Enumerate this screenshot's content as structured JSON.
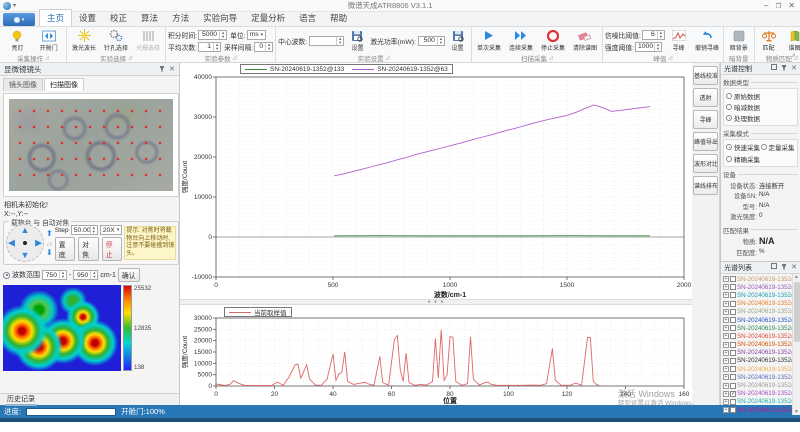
{
  "window": {
    "title": "微谱天成ATR8806 V3.1.1",
    "min": "–",
    "restore": "❐",
    "close": "✕"
  },
  "menu": {
    "tabs": [
      "主页",
      "设置",
      "校正",
      "算法",
      "方法",
      "实验向导",
      "定量分析",
      "语言",
      "帮助"
    ],
    "selected": 0
  },
  "ribbon": {
    "collapse_icon": "˄",
    "groups": {
      "g1": {
        "name": "采集操作",
        "btn1": "亮灯",
        "btn2": "开舱门"
      },
      "g2": {
        "name": "实验选择",
        "btn1": "激光波长",
        "btn2": "针孔选择",
        "btn3": "光栅选择"
      },
      "g3": {
        "name": "实验参数",
        "f1_label": "积分时间:",
        "f1_value": "5000",
        "f2_label": "单位:",
        "f2_value": "ms",
        "f3_label": "平均次数:",
        "f3_value": "1",
        "f4_label": "采样间隔:",
        "f4_value": "0"
      },
      "g4": {
        "name": "实验设置",
        "f1_label": "中心波数:",
        "f1_value": "",
        "set1": "设置",
        "f2_label": "激光功率(mW):",
        "f2_value": "500",
        "set2": "设置"
      },
      "g5": {
        "name": "扫描采集",
        "btn1": "单次采集",
        "btn2": "连续采集",
        "btn3": "停止采集",
        "btn4": "清除谱图"
      },
      "g6": {
        "name": "峰值",
        "f1_label": "信噪比阈值:",
        "f1_value": "6",
        "f2_label": "强度阈值:",
        "f2_value": "1000",
        "btn1": "寻峰",
        "btn2": "撤销寻峰"
      },
      "g7": {
        "name": "暗背景",
        "btn1": "暗背景"
      },
      "g8": {
        "name": "物质匹配",
        "btn1": "匹配",
        "btn2": "谱图"
      }
    }
  },
  "left_panel": {
    "title": "显微镜镜头",
    "tabs": [
      "镜头图像",
      "扫描图像"
    ],
    "selected_tab": 1,
    "camera_note": "相机未初始化!",
    "coords": "X:--,Y:--",
    "stage": {
      "title": "载物台 与 自动对焦",
      "step_label": "Step",
      "step_value": "50.00",
      "zoom_value": "20X",
      "btn_bottom": "置底",
      "btn_focus": "对焦",
      "btn_stop": "停止",
      "hint": "提示: 对焦时将载物台向上移动时, 注意不要碰撞到镜头。"
    },
    "range": {
      "label": "波数范围",
      "from": "750",
      "to": "950",
      "dash": "-",
      "unit": "cm-1",
      "confirm": "确认"
    },
    "colorbar": {
      "max": "25532",
      "mid": "12835",
      "min": "138"
    },
    "history": "历史记录"
  },
  "side_buttons": [
    "基线校准",
    "透射",
    "寻峰",
    "峰值导出",
    "波形对比",
    "谱线排布"
  ],
  "spectrum_control": {
    "title": "光谱控制",
    "data_type": {
      "title": "数据类型",
      "opt1": "原始数据",
      "opt2": "暗减数据",
      "opt3": "处理数据",
      "selected": 2
    },
    "acq_mode": {
      "title": "采集模式",
      "opt1": "快速采集",
      "opt2": "定量采集",
      "opt3": "精确采集",
      "selected": 0
    },
    "device": {
      "title": "设备",
      "r1k": "设备状态:",
      "r1v": "连接断开",
      "r2k": "设备SN:",
      "r2v": "N/A",
      "r3k": "型号:",
      "r3v": "N/A",
      "r4k": "激光强度:",
      "r4v": "0"
    },
    "match": {
      "title": "匹配结果",
      "r1k": "物质:",
      "r1v": "N/A",
      "r2k": "匹配度:",
      "r2v": "%"
    }
  },
  "spectrum_list": {
    "title": "光谱列表",
    "items": [
      {
        "label": "SN-20240619-1352@49",
        "color": "#c89a6a",
        "checked": false
      },
      {
        "label": "SN-20240619-1352@50",
        "color": "#9b59b6",
        "checked": false
      },
      {
        "label": "SN-20240619-1352@51",
        "color": "#17a2b8",
        "checked": false
      },
      {
        "label": "SN-20240619-1352@52",
        "color": "#e67e22",
        "checked": false
      },
      {
        "label": "SN-20240619-1352@53",
        "color": "#9aa87e",
        "checked": false
      },
      {
        "label": "SN-20240619-1352@54",
        "color": "#2255cc",
        "checked": false
      },
      {
        "label": "SN-20240619-1352@55",
        "color": "#2e8b57",
        "checked": false
      },
      {
        "label": "SN-20240619-1352@56",
        "color": "#e74c3c",
        "checked": false
      },
      {
        "label": "SN-20240619-1352@57",
        "color": "#d35400",
        "checked": false
      },
      {
        "label": "SN-20240619-1352@58",
        "color": "#8e44ad",
        "checked": false
      },
      {
        "label": "SN-20240619-1352@59",
        "color": "#333333",
        "checked": false
      },
      {
        "label": "SN-20240619-1352@60",
        "color": "#f0ad4e",
        "checked": false
      },
      {
        "label": "SN-20240619-1352@61",
        "color": "#5b6abf",
        "checked": false
      },
      {
        "label": "SN-20240619-1352@62",
        "color": "#999999",
        "checked": false
      },
      {
        "label": "SN-20240619-1352@63",
        "color": "#a050c8",
        "checked": true
      },
      {
        "label": "SN-20240619-1352@64",
        "color": "#20b2aa",
        "checked": false
      },
      {
        "label": "SN-20240619-1352@65",
        "color": "#c71585",
        "checked": false
      }
    ]
  },
  "status_bar": {
    "progress_label": "进度:",
    "door_status": "开舱门:100%"
  },
  "watermark": {
    "line1": "激活 Windows",
    "line2": "转到设置以激活 Windows。"
  },
  "chart_data": [
    {
      "type": "line",
      "xlabel": "波数/cm-1",
      "ylabel": "强度/Count",
      "xlim": [
        0,
        2000
      ],
      "ylim": [
        -10000,
        40000
      ],
      "xticks": [
        0,
        500,
        1000,
        1500,
        2000
      ],
      "yticks": [
        -10000,
        0,
        10000,
        20000,
        30000,
        40000
      ],
      "xgrid": 100,
      "ygrid": 2000,
      "legend_pos": "top-center",
      "series": [
        {
          "name": "SN-20240619-1352@133",
          "color": "#3c8a3c",
          "points": [
            [
              505,
              300
            ],
            [
              700,
              320
            ],
            [
              900,
              290
            ],
            [
              1100,
              310
            ],
            [
              1300,
              300
            ],
            [
              1500,
              320
            ],
            [
              1700,
              300
            ],
            [
              1855,
              310
            ]
          ]
        },
        {
          "name": "SN-20240619-1352@63",
          "color": "#b05fd0",
          "points": [
            [
              505,
              15300
            ],
            [
              540,
              15700
            ],
            [
              580,
              16300
            ],
            [
              620,
              16900
            ],
            [
              660,
              17500
            ],
            [
              700,
              18100
            ],
            [
              740,
              18700
            ],
            [
              780,
              19400
            ],
            [
              820,
              20000
            ],
            [
              860,
              20700
            ],
            [
              900,
              21300
            ],
            [
              940,
              21900
            ],
            [
              980,
              22500
            ],
            [
              1020,
              23100
            ],
            [
              1060,
              23700
            ],
            [
              1100,
              24400
            ],
            [
              1140,
              25000
            ],
            [
              1180,
              25600
            ],
            [
              1220,
              26300
            ],
            [
              1260,
              26900
            ],
            [
              1300,
              27500
            ],
            [
              1340,
              28200
            ],
            [
              1380,
              28800
            ],
            [
              1420,
              29400
            ],
            [
              1460,
              29900
            ],
            [
              1500,
              30400
            ],
            [
              1540,
              31200
            ],
            [
              1580,
              32200
            ],
            [
              1615,
              33000
            ],
            [
              1650,
              32400
            ],
            [
              1690,
              31400
            ],
            [
              1720,
              31600
            ],
            [
              1760,
              31900
            ],
            [
              1800,
              32200
            ],
            [
              1855,
              32600
            ]
          ]
        }
      ]
    },
    {
      "type": "line",
      "xlabel": "位置",
      "ylabel": "强度/Count",
      "xlim": [
        0,
        160
      ],
      "ylim": [
        0,
        30000
      ],
      "xticks": [
        0,
        20,
        40,
        60,
        80,
        100,
        120,
        140,
        160
      ],
      "yticks": [
        0,
        5000,
        10000,
        15000,
        20000,
        25000,
        30000
      ],
      "xgrid": 5,
      "ygrid": 5000,
      "legend_pos": "top-left",
      "series": [
        {
          "name": "当前取样值",
          "color": "#e06666",
          "points": [
            [
              0,
              900
            ],
            [
              3,
              200
            ],
            [
              5,
              900
            ],
            [
              6,
              2400
            ],
            [
              8,
              1000
            ],
            [
              10,
              200
            ],
            [
              13,
              200
            ],
            [
              16,
              250
            ],
            [
              19,
              250
            ],
            [
              21,
              1700
            ],
            [
              23,
              300
            ],
            [
              25,
              4000
            ],
            [
              27,
              9300
            ],
            [
              28,
              9600
            ],
            [
              29,
              3500
            ],
            [
              31,
              9400
            ],
            [
              32,
              3000
            ],
            [
              34,
              400
            ],
            [
              36,
              300
            ],
            [
              38,
              3000
            ],
            [
              40,
              14200
            ],
            [
              41,
              2500
            ],
            [
              42,
              5300
            ],
            [
              43,
              6000
            ],
            [
              44,
              15000
            ],
            [
              45,
              2000
            ],
            [
              47,
              700
            ],
            [
              49,
              1200
            ],
            [
              51,
              1600
            ],
            [
              52,
              900
            ],
            [
              54,
              300
            ],
            [
              56,
              13000
            ],
            [
              57,
              1500
            ],
            [
              59,
              300
            ],
            [
              61,
              20500
            ],
            [
              62,
              22300
            ],
            [
              63,
              7000
            ],
            [
              64,
              2000
            ],
            [
              65,
              14500
            ],
            [
              66,
              1500
            ],
            [
              68,
              300
            ],
            [
              70,
              700
            ],
            [
              72,
              400
            ],
            [
              74,
              2000
            ],
            [
              75,
              21000
            ],
            [
              76,
              3500
            ],
            [
              77,
              24800
            ],
            [
              78,
              2500
            ],
            [
              79,
              5000
            ],
            [
              80,
              21800
            ],
            [
              81,
              21500
            ],
            [
              82,
              2000
            ],
            [
              84,
              300
            ],
            [
              86,
              1000
            ],
            [
              87,
              21700
            ],
            [
              88,
              3000
            ],
            [
              90,
              400
            ],
            [
              92,
              1500
            ],
            [
              93,
              1700
            ],
            [
              94,
              800
            ],
            [
              96,
              300
            ],
            [
              99,
              300
            ],
            [
              102,
              300
            ],
            [
              105,
              300
            ],
            [
              108,
              400
            ],
            [
              111,
              300
            ],
            [
              113,
              1000
            ],
            [
              115,
              16500
            ],
            [
              116,
              2500
            ],
            [
              118,
              300
            ],
            [
              121,
              300
            ],
            [
              123,
              1300
            ],
            [
              125,
              300
            ],
            [
              127,
              21500
            ],
            [
              128,
              21300
            ],
            [
              129,
              2000
            ],
            [
              130,
              700
            ],
            [
              131,
              300
            ]
          ]
        }
      ]
    }
  ]
}
